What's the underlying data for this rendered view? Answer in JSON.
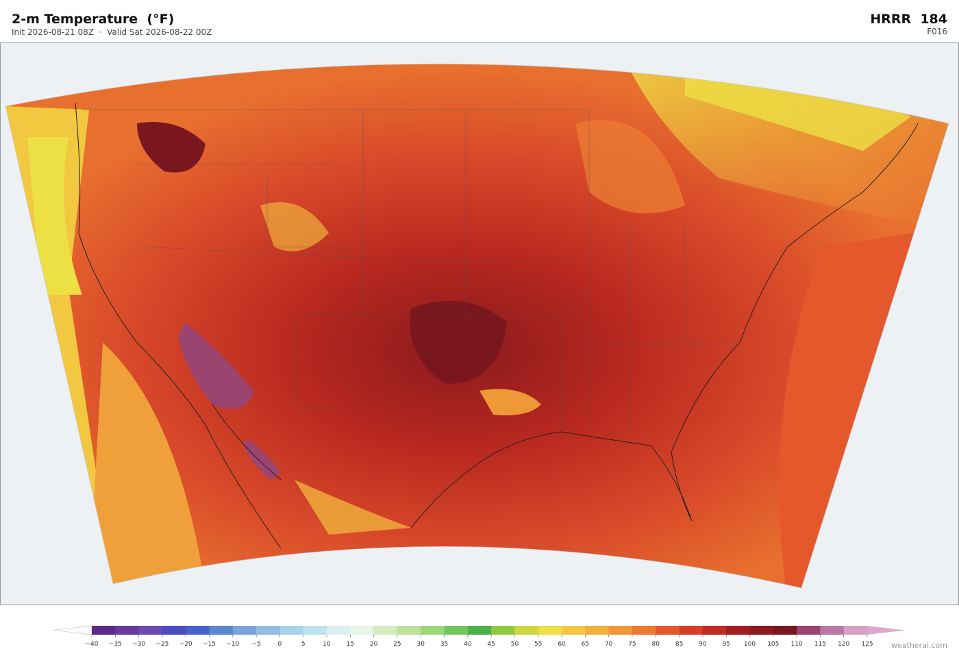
{
  "header": {
    "title": "2-m Temperature  (°F)",
    "subtitle": "Init 2026-08-21 08Z  ·  Valid Sat 2026-08-22 00Z",
    "model": "HRRR  184",
    "forecast_hour": "F016"
  },
  "colorbar": {
    "range": [
      -40,
      125
    ],
    "ticks": [
      {
        "value": -40,
        "label": "−40"
      },
      {
        "value": -35,
        "label": "−35"
      },
      {
        "value": -30,
        "label": "−30"
      },
      {
        "value": -25,
        "label": "−25"
      },
      {
        "value": -20,
        "label": "−20"
      },
      {
        "value": -15,
        "label": "−15"
      },
      {
        "value": -10,
        "label": "−10"
      },
      {
        "value": -5,
        "label": "−5"
      },
      0,
      5,
      10,
      15,
      20,
      25,
      30,
      35,
      40,
      45,
      50,
      55,
      60,
      65,
      70,
      75,
      80,
      85,
      90,
      95,
      100,
      105,
      110,
      115,
      120,
      125
    ],
    "colors": [
      "#5b2a86",
      "#6a3a9c",
      "#6e4bb0",
      "#4a4cc0",
      "#4a62c8",
      "#5b86d0",
      "#79a3d8",
      "#93bce0",
      "#a8d2e8",
      "#c0e2ee",
      "#daf0f2",
      "#e6f6e6",
      "#d4ecc0",
      "#bfe29a",
      "#9cd67a",
      "#74c460",
      "#4caf48",
      "#94c840",
      "#cfd640",
      "#ece044",
      "#f2c840",
      "#f0b03c",
      "#ee9838",
      "#ea7a32",
      "#e5582c",
      "#d63f26",
      "#c02a24",
      "#a01e22",
      "#8c1a1e",
      "#7a161e",
      "#9c4470",
      "#b878a8",
      "#d4a0c8"
    ]
  },
  "footer": {
    "credit": "weatherai.com"
  }
}
